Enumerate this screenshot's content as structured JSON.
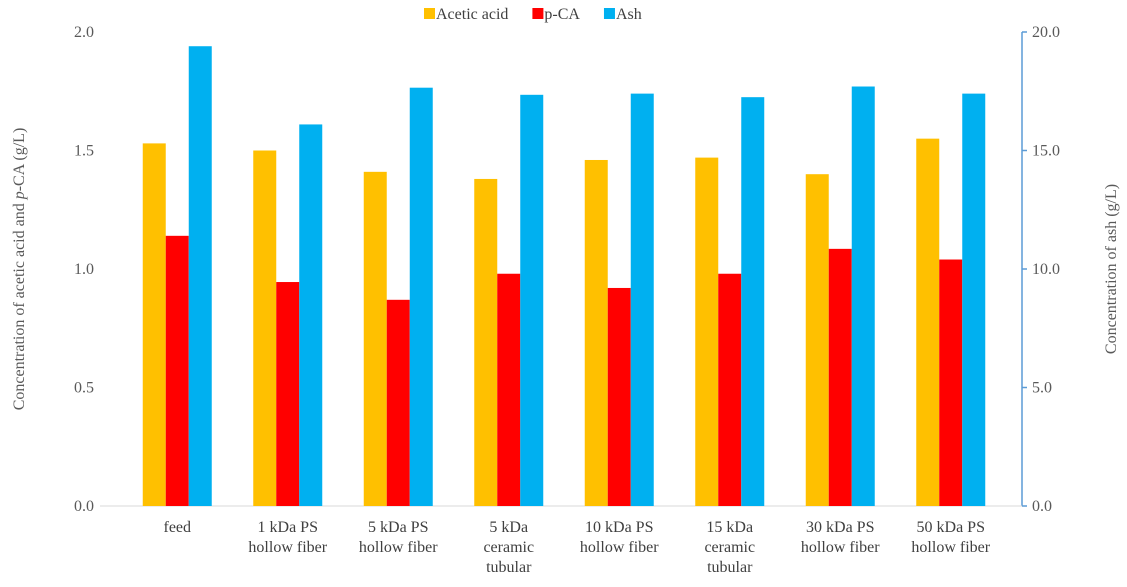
{
  "chart_data": {
    "type": "bar",
    "categories": [
      [
        "feed"
      ],
      [
        "1 kDa PS",
        "hollow fiber"
      ],
      [
        "5 kDa PS",
        "hollow fiber"
      ],
      [
        "5 kDa",
        "ceramic",
        "tubular"
      ],
      [
        "10 kDa PS",
        "hollow fiber"
      ],
      [
        "15 kDa",
        "ceramic",
        "tubular"
      ],
      [
        "30 kDa PS",
        "hollow fiber"
      ],
      [
        "50 kDa PS",
        "hollow fiber"
      ]
    ],
    "series": [
      {
        "name": "Acetic acid",
        "axis": "left",
        "color": "#FFC000",
        "values": [
          1.53,
          1.5,
          1.41,
          1.38,
          1.46,
          1.47,
          1.4,
          1.55
        ]
      },
      {
        "name": "p-CA",
        "axis": "left",
        "color": "#FF0000",
        "values": [
          1.14,
          0.945,
          0.87,
          0.98,
          0.92,
          0.98,
          1.085,
          1.04
        ]
      },
      {
        "name": "Ash",
        "axis": "right",
        "color": "#00B0F0",
        "values": [
          19.4,
          16.1,
          17.65,
          17.35,
          17.4,
          17.25,
          17.7,
          17.4
        ]
      }
    ],
    "y_left": {
      "label_parts": [
        {
          "text": "Concentration of acetic acid and ",
          "italic": false
        },
        {
          "text": "p",
          "italic": true
        },
        {
          "text": "-CA (g/L)",
          "italic": false
        }
      ],
      "ylim": [
        0,
        2.0
      ],
      "ticks": [
        "0.0",
        "0.5",
        "1.0",
        "1.5",
        "2.0"
      ]
    },
    "y_right": {
      "label": "Concentration of ash (g/L)",
      "ylim": [
        0,
        20.0
      ],
      "ticks": [
        "0.0",
        "5.0",
        "10.0",
        "15.0",
        "20.0"
      ],
      "axis_color": "#5B9BD5"
    },
    "legend_position": "top-center",
    "grid": false
  }
}
